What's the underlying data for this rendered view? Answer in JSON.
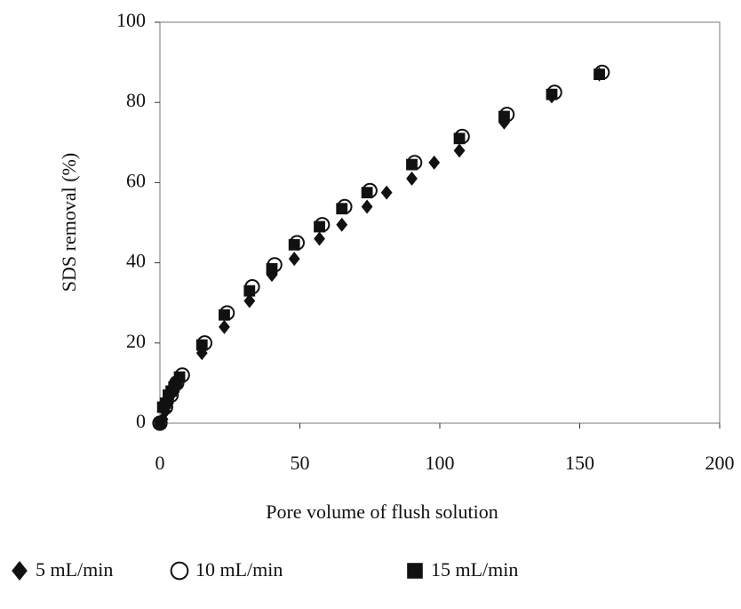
{
  "chart_data": {
    "type": "scatter",
    "x_label": "Pore volume of flush solution",
    "y_label": "SDS removal (%)",
    "xlim": [
      0,
      200
    ],
    "xticks": [
      0,
      50,
      100,
      150,
      200
    ],
    "ylim": [
      0,
      100
    ],
    "yticks": [
      0,
      20,
      40,
      60,
      80,
      100
    ],
    "grid": false,
    "legend": "bottom",
    "series": [
      {
        "name": "5 mL/min",
        "color": "#111111",
        "marker": "diamond",
        "x": [
          0,
          1,
          2,
          3,
          4,
          5,
          6,
          7,
          15,
          23,
          32,
          40,
          48,
          57,
          65,
          74,
          81,
          90,
          98,
          107,
          123,
          140,
          157
        ],
        "values": [
          0,
          1,
          3,
          5,
          7,
          8,
          9,
          11,
          17.5,
          24,
          30.5,
          37,
          41,
          46,
          49.5,
          54,
          57.5,
          61,
          65,
          68,
          75,
          81.5,
          87
        ]
      },
      {
        "name": "10 mL/min",
        "color": "#111111",
        "marker": "circle",
        "x": [
          0,
          2,
          4,
          6,
          8,
          16,
          24,
          33,
          41,
          49,
          58,
          66,
          75,
          91,
          108,
          124,
          141,
          158
        ],
        "values": [
          0,
          4,
          7,
          10,
          12,
          20,
          27.5,
          34,
          39.5,
          45,
          49.5,
          54,
          58,
          65,
          71.5,
          77,
          82.5,
          87.5
        ]
      },
      {
        "name": "15 mL/min",
        "color": "#111111",
        "marker": "square",
        "x": [
          0,
          1,
          2,
          3,
          4,
          5,
          6,
          7,
          15,
          23,
          32,
          40,
          48,
          57,
          65,
          74,
          90,
          107,
          123,
          140,
          157
        ],
        "values": [
          0,
          4,
          5,
          7,
          8,
          9,
          10,
          11.5,
          19.5,
          27,
          33,
          38.5,
          44.5,
          49,
          53.5,
          57.5,
          64.5,
          71,
          76.5,
          82,
          87
        ]
      }
    ]
  }
}
